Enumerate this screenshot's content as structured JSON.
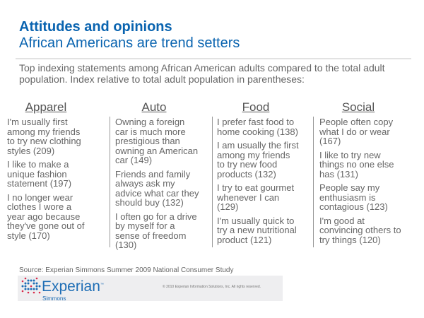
{
  "title": "Attitudes and opinions",
  "subtitle": "African Americans are trend setters",
  "intro": "Top indexing statements among African American adults compared to the total adult population. Index relative to total adult population in parentheses:",
  "columns": [
    {
      "heading": "Apparel",
      "items": [
        "I'm usually first\namong my friends\nto try new clothing\nstyles (209)",
        "I like to make a\nunique fashion\nstatement (197)",
        "I no longer wear\nclothes I wore a\nyear ago because\nthey've gone out of\nstyle (170)"
      ]
    },
    {
      "heading": "Auto",
      "items": [
        "Owning a foreign\ncar is much more\nprestigious than\nowning an American\ncar (149)",
        "Friends and family\nalways ask my\nadvice what car they\nshould buy (132)",
        "I often go for a drive\nby myself for a\nsense of freedom\n(130)"
      ]
    },
    {
      "heading": "Food",
      "items": [
        "I prefer fast food to\nhome cooking (138)",
        "I am usually the first\namong my friends\nto try new food\nproducts (132)",
        "I try to eat gourmet\nwhenever I can\n(129)",
        "I'm usually quick to\ntry a new nutritional\nproduct (121)"
      ]
    },
    {
      "heading": "Social",
      "items": [
        "People often copy\nwhat I do or wear\n(167)",
        "I like to try new\nthings no one else\nhas (131)",
        "People say my\nenthusiasm is\ncontagious (123)",
        "I'm good at\nconvincing others to\ntry things (120)"
      ]
    }
  ],
  "source": "Source: Experian Simmons Summer 2009 National Consumer Study",
  "footer": {
    "brand": "Experian",
    "tm": "™",
    "sub": "Simmons",
    "copyright": "© 2010 Experian Information Solutions, Inc.  All rights reserved."
  }
}
